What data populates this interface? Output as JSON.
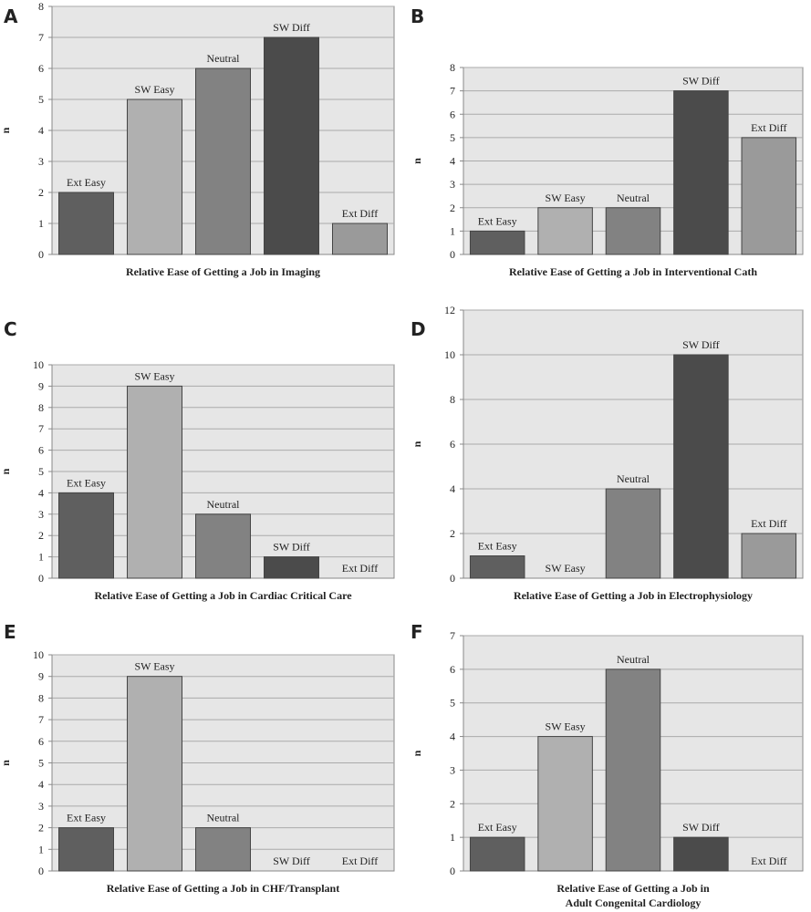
{
  "colors": {
    "plot_bg": "#e6e6e6",
    "grid": "#aaaaaa",
    "axis": "#888888",
    "Ext Easy": "#5f5f5f",
    "SW Easy": "#b0b0b0",
    "Neutral": "#828282",
    "SW Diff": "#4b4b4b",
    "Ext Diff": "#9a9a9a"
  },
  "chart_data": [
    {
      "type": "bar",
      "panel": "A",
      "categories": [
        "Ext Easy",
        "SW Easy",
        "Neutral",
        "SW Diff",
        "Ext Diff"
      ],
      "values": [
        2,
        5,
        6,
        7,
        1
      ],
      "xlabel": [
        "Relative Ease of Getting a Job in Imaging"
      ],
      "ylabel": "n",
      "ylim": [
        0,
        8
      ],
      "yticks": [
        0,
        1,
        2,
        3,
        4,
        5,
        6,
        7,
        8
      ],
      "grid": true
    },
    {
      "type": "bar",
      "panel": "B",
      "categories": [
        "Ext Easy",
        "SW Easy",
        "Neutral",
        "SW Diff",
        "Ext Diff"
      ],
      "values": [
        1,
        2,
        2,
        7,
        5
      ],
      "xlabel": [
        "Relative Ease of Getting a Job in Interventional Cath"
      ],
      "ylabel": "n",
      "ylim": [
        0,
        8
      ],
      "yticks": [
        0,
        1,
        2,
        3,
        4,
        5,
        6,
        7,
        8
      ],
      "grid": true
    },
    {
      "type": "bar",
      "panel": "C",
      "categories": [
        "Ext Easy",
        "SW Easy",
        "Neutral",
        "SW Diff",
        "Ext Diff"
      ],
      "values": [
        4,
        9,
        3,
        1,
        0
      ],
      "xlabel": [
        "Relative Ease of Getting a Job in Cardiac Critical Care"
      ],
      "ylabel": "n",
      "ylim": [
        0,
        10
      ],
      "yticks": [
        0,
        1,
        2,
        3,
        4,
        5,
        6,
        7,
        8,
        9,
        10
      ],
      "grid": true
    },
    {
      "type": "bar",
      "panel": "D",
      "categories": [
        "Ext Easy",
        "SW Easy",
        "Neutral",
        "SW Diff",
        "Ext Diff"
      ],
      "values": [
        1,
        0,
        4,
        10,
        2
      ],
      "xlabel": [
        "Relative Ease of Getting a Job in Electrophysiology"
      ],
      "ylabel": "n",
      "ylim": [
        0,
        12
      ],
      "yticks": [
        0,
        2,
        4,
        6,
        8,
        10,
        12
      ],
      "grid": true
    },
    {
      "type": "bar",
      "panel": "E",
      "categories": [
        "Ext Easy",
        "SW Easy",
        "Neutral",
        "SW Diff",
        "Ext Diff"
      ],
      "values": [
        2,
        9,
        2,
        0,
        0
      ],
      "xlabel": [
        "Relative Ease of Getting a Job in CHF/Transplant"
      ],
      "ylabel": "n",
      "ylim": [
        0,
        10
      ],
      "yticks": [
        0,
        1,
        2,
        3,
        4,
        5,
        6,
        7,
        8,
        9,
        10
      ],
      "grid": true
    },
    {
      "type": "bar",
      "panel": "F",
      "categories": [
        "Ext Easy",
        "SW Easy",
        "Neutral",
        "SW Diff",
        "Ext Diff"
      ],
      "values": [
        1,
        4,
        6,
        1,
        0
      ],
      "xlabel": [
        "Relative Ease of Getting a Job in",
        "Adult Congenital Cardiology"
      ],
      "ylabel": "n",
      "ylim": [
        0,
        7
      ],
      "yticks": [
        0,
        1,
        2,
        3,
        4,
        5,
        6,
        7
      ],
      "grid": true
    }
  ]
}
